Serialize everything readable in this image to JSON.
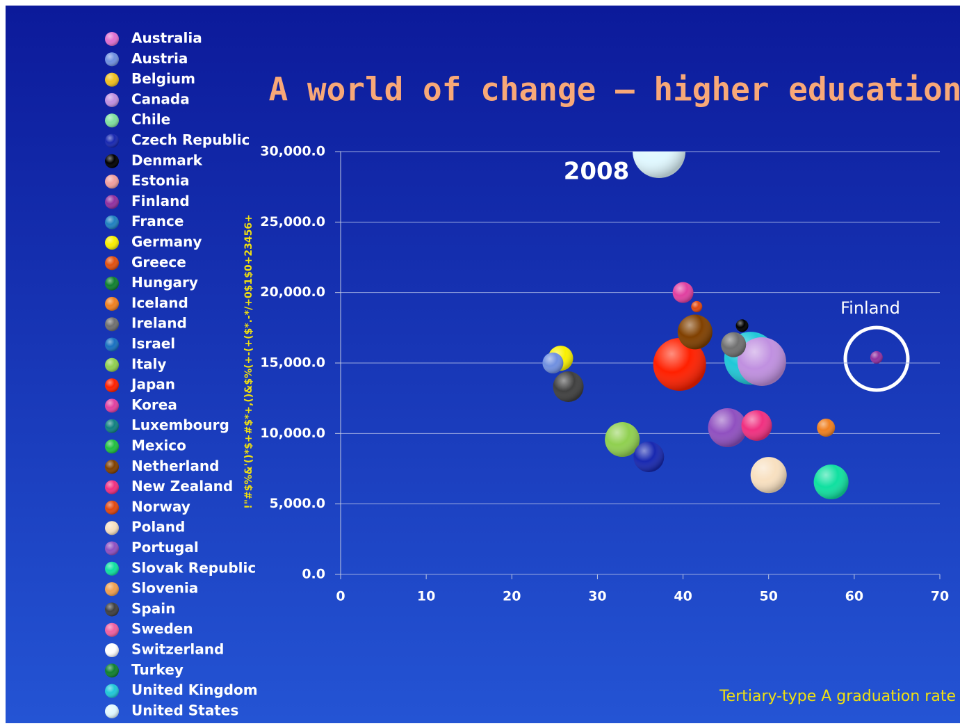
{
  "chart_data": {
    "type": "bubble",
    "title": "A world of change – higher education",
    "y_label": "!\"#$%&'()*$+#$*+,()&$%(+-(+($*.-*/+0$1$0+23456+",
    "annotations": [
      "2008",
      "Finland",
      "Tertiary-type A graduation rate"
    ],
    "xlim": [
      0,
      70
    ],
    "xticks": [
      0,
      10,
      20,
      30,
      40,
      50,
      60,
      70
    ],
    "ylim": [
      0,
      30000
    ],
    "yticks": [
      {
        "value": 0,
        "label": "0.0"
      },
      {
        "value": 5000,
        "label": "5,000.0"
      },
      {
        "value": 10000,
        "label": "10,000.0"
      },
      {
        "value": 15000,
        "label": "15,000.0"
      },
      {
        "value": 20000,
        "label": "20,000.0"
      },
      {
        "value": 25000,
        "label": "25,000.0"
      },
      {
        "value": 30000,
        "label": "30,000.0"
      }
    ],
    "grid": true,
    "series": [
      {
        "name": "Australia",
        "color": "#e070d0",
        "x": [],
        "values": [],
        "size": []
      },
      {
        "name": "Austria",
        "color": "#7090e0",
        "x": [
          24.8
        ],
        "values": [
          15000
        ],
        "size": [
          15
        ]
      },
      {
        "name": "Belgium",
        "color": "#f0c020",
        "x": [],
        "values": [],
        "size": []
      },
      {
        "name": "Canada",
        "color": "#c090e0",
        "x": [
          49.2
        ],
        "values": [
          15100
        ],
        "size": [
          35
        ]
      },
      {
        "name": "Chile",
        "color": "#80e0a0",
        "x": [],
        "values": [],
        "size": []
      },
      {
        "name": "Czech Republic",
        "color": "#1828b0",
        "x": [
          36
        ],
        "values": [
          8340
        ],
        "size": [
          22
        ]
      },
      {
        "name": "Denmark",
        "color": "#000000",
        "x": [
          46.9
        ],
        "values": [
          17650
        ],
        "size": [
          9
        ]
      },
      {
        "name": "Estonia",
        "color": "#f0a0a0",
        "x": [],
        "values": [],
        "size": []
      },
      {
        "name": "Finland",
        "color": "#9030a0",
        "x": [
          62.6
        ],
        "values": [
          15400
        ],
        "size": [
          9
        ]
      },
      {
        "name": "France",
        "color": "#2080c0",
        "x": [],
        "values": [],
        "size": []
      },
      {
        "name": "Germany",
        "color": "#f8f000",
        "x": [
          25.7
        ],
        "values": [
          15340
        ],
        "size": [
          18
        ]
      },
      {
        "name": "Greece",
        "color": "#e05010",
        "x": [],
        "values": [],
        "size": []
      },
      {
        "name": "Hungary",
        "color": "#108030",
        "x": [],
        "values": [],
        "size": []
      },
      {
        "name": "Iceland",
        "color": "#f08020",
        "x": [
          56.7
        ],
        "values": [
          10410
        ],
        "size": [
          13
        ]
      },
      {
        "name": "Ireland",
        "color": "#707070",
        "x": [
          45.9
        ],
        "values": [
          16300
        ],
        "size": [
          18
        ]
      },
      {
        "name": "Israel",
        "color": "#1870c0",
        "x": [],
        "values": [],
        "size": []
      },
      {
        "name": "Italy",
        "color": "#90d050",
        "x": [
          32.9
        ],
        "values": [
          9570
        ],
        "size": [
          25
        ]
      },
      {
        "name": "Japan",
        "color": "#ff2000",
        "x": [
          39.6
        ],
        "values": [
          14900
        ],
        "size": [
          38
        ]
      },
      {
        "name": "Korea",
        "color": "#e040a0",
        "x": [
          40
        ],
        "values": [
          20000
        ],
        "size": [
          15
        ]
      },
      {
        "name": "Luxembourg",
        "color": "#108080",
        "x": [],
        "values": [],
        "size": []
      },
      {
        "name": "Mexico",
        "color": "#20c040",
        "x": [],
        "values": [],
        "size": []
      },
      {
        "name": "Netherland",
        "color": "#804000",
        "x": [
          41.4
        ],
        "values": [
          17200
        ],
        "size": [
          25
        ]
      },
      {
        "name": "New Zealand",
        "color": "#f03080",
        "x": [
          48.6
        ],
        "values": [
          10560
        ],
        "size": [
          22
        ]
      },
      {
        "name": "Norway",
        "color": "#e04810",
        "x": [
          41.6
        ],
        "values": [
          19000
        ],
        "size": [
          8
        ]
      },
      {
        "name": "Poland",
        "color": "#f8e0c0",
        "x": [
          50
        ],
        "values": [
          7050
        ],
        "size": [
          26
        ]
      },
      {
        "name": "Portugal",
        "color": "#9050c0",
        "x": [
          45.2
        ],
        "values": [
          10410
        ],
        "size": [
          28
        ]
      },
      {
        "name": "Slovak Republic",
        "color": "#10e0a0",
        "x": [
          57.3
        ],
        "values": [
          6560
        ],
        "size": [
          25
        ]
      },
      {
        "name": "Slovenia",
        "color": "#f0a050",
        "x": [],
        "values": [],
        "size": []
      },
      {
        "name": "Spain",
        "color": "#404040",
        "x": [
          26.6
        ],
        "values": [
          13320
        ],
        "size": [
          22
        ]
      },
      {
        "name": "Sweden",
        "color": "#f060a0",
        "x": [],
        "values": [],
        "size": []
      },
      {
        "name": "Switzerland",
        "color": "#ffffff",
        "x": [],
        "values": [],
        "size": []
      },
      {
        "name": "Turkey",
        "color": "#108030",
        "x": [],
        "values": [],
        "size": []
      },
      {
        "name": "United Kingdom",
        "color": "#20c8d8",
        "x": [
          47.9
        ],
        "values": [
          15340
        ],
        "size": [
          38
        ]
      },
      {
        "name": "United States",
        "color": "#e0f8ff",
        "x": [
          37.2
        ],
        "values": [
          30000
        ],
        "size": [
          38
        ]
      }
    ]
  }
}
